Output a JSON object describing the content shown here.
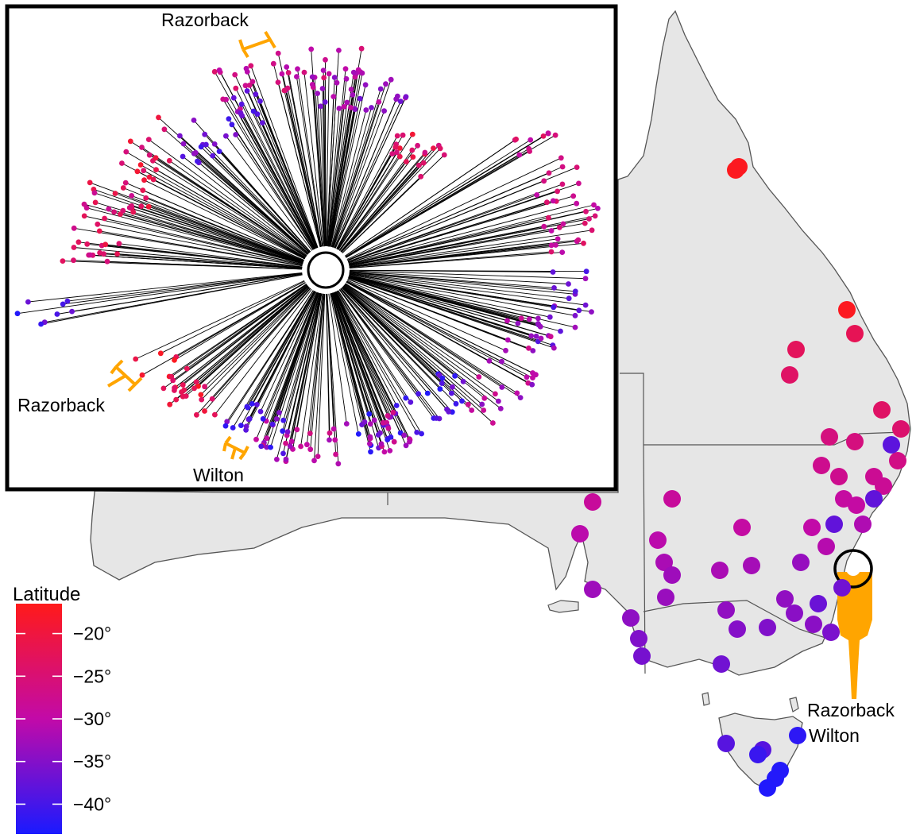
{
  "figure": {
    "tree_labels": {
      "top": "Razorback",
      "left": "Razorback",
      "bottom": "Wilton"
    },
    "map_labels": {
      "site1": "Razorback",
      "site2": "Wilton"
    },
    "legend": {
      "title": "Latitude",
      "ticks": [
        "−20°",
        "−25°",
        "−30°",
        "−35°",
        "−40°"
      ],
      "tick_values": [
        -20,
        -25,
        -30,
        -35,
        -40
      ],
      "range": [
        -43.5,
        -16.5
      ],
      "colors": {
        "north": "#ff1a1a",
        "mid": "#c20aa8",
        "south": "#1a1aff"
      }
    },
    "colors": {
      "land": "#e6e6e6",
      "border": "#555555",
      "highlight": "#ffa500",
      "tree_lines": "#000000"
    },
    "site_latitudes": [
      -16.9,
      -17.1,
      -22.1,
      -22.7,
      -23.6,
      -24.4,
      -26.0,
      -26.7,
      -27.5,
      -28.0,
      -28.2,
      -28.8,
      -29.3,
      -29.5,
      -30.0,
      -30.6,
      -31.0,
      -31.5,
      -31.9,
      -32.3,
      -32.9,
      -33.3,
      -33.5,
      -33.9,
      -34.2,
      -34.5,
      -34.9,
      -35.3,
      -35.7,
      -36.1,
      -36.5,
      -37.1,
      -37.8,
      -38.2,
      -38.6,
      -41.0,
      -42.0,
      -42.8,
      -43.0
    ]
  }
}
